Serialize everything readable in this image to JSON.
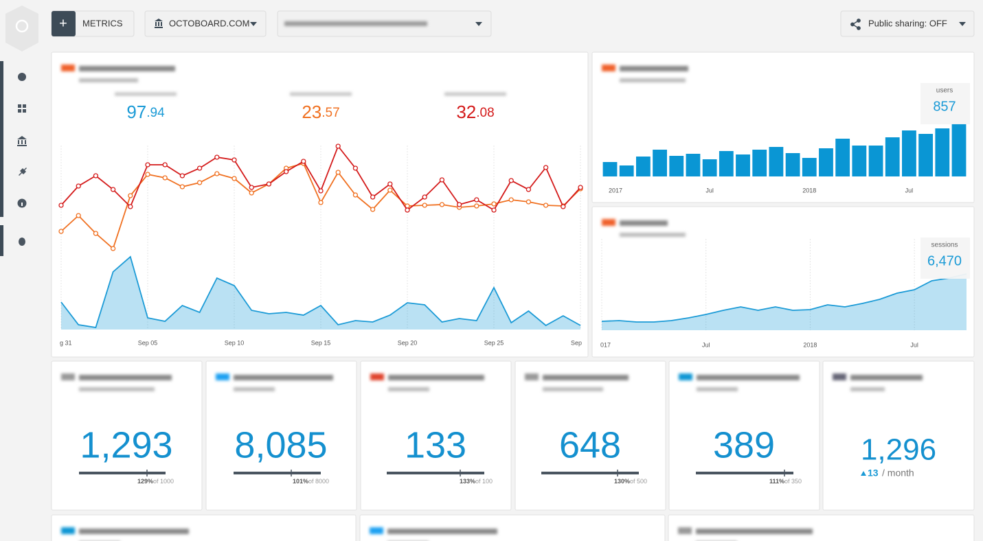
{
  "toolbar": {
    "add_button": "METRICS",
    "source": "OCTOBOARD.COM",
    "sharing": "Public sharing: OFF"
  },
  "overview": {
    "kpis": [
      {
        "main": "97",
        "fraction": ".94",
        "color": "#1a9ad6"
      },
      {
        "main": "23",
        "fraction": ".57",
        "color": "#f07020"
      },
      {
        "main": "32",
        "fraction": ".08",
        "color": "#d41a1a"
      }
    ],
    "chart_data": {
      "type": "line",
      "categories": [
        "g 31",
        null,
        null,
        null,
        null,
        "Sep 05",
        null,
        null,
        null,
        null,
        "Sep 10",
        null,
        null,
        null,
        null,
        "Sep 15",
        null,
        null,
        null,
        null,
        "Sep 20",
        null,
        null,
        null,
        null,
        "Sep 25",
        null,
        null,
        null,
        null,
        "Sep"
      ],
      "ylim": [
        0,
        280
      ],
      "grid": true,
      "series": [
        {
          "color": "#1a9ad6",
          "area": true,
          "markers": false,
          "values": [
            40,
            7,
            3,
            84,
            106,
            17,
            12,
            35,
            25,
            75,
            64,
            28,
            23,
            25,
            21,
            35,
            7,
            13,
            11,
            21,
            39,
            36,
            11,
            16,
            13,
            61,
            10,
            27,
            6,
            20,
            6
          ]
        },
        {
          "color": "#f07020",
          "area": false,
          "markers": true,
          "values": [
            143,
            166,
            140,
            118,
            195,
            226,
            221,
            208,
            214,
            227,
            220,
            199,
            212,
            235,
            242,
            185,
            229,
            196,
            175,
            203,
            180,
            181,
            182,
            178,
            180,
            183,
            189,
            186,
            181,
            180,
            205
          ]
        },
        {
          "color": "#d41a1a",
          "area": false,
          "markers": true,
          "values": [
            181,
            209,
            224,
            204,
            179,
            240,
            240,
            224,
            235,
            251,
            247,
            207,
            212,
            230,
            245,
            202,
            267,
            235,
            193,
            212,
            174,
            193,
            218,
            182,
            189,
            174,
            217,
            204,
            236,
            179,
            207
          ]
        }
      ]
    }
  },
  "users": {
    "label": "users",
    "value_text": "857",
    "chart_data": {
      "type": "bar",
      "categories": [
        "2017",
        null,
        null,
        null,
        null,
        null,
        "Jul",
        null,
        null,
        null,
        null,
        null,
        "2018",
        null,
        null,
        null,
        null,
        null,
        "Jul",
        null,
        null,
        null
      ],
      "values": [
        21,
        16,
        29,
        39,
        30,
        33,
        25,
        37,
        32,
        39,
        43,
        34,
        27,
        41,
        55,
        45,
        45,
        57,
        67,
        62,
        70,
        77
      ],
      "color": "#0a96d4",
      "ylim": [
        0,
        85
      ]
    }
  },
  "sessions": {
    "label": "sessions",
    "value_text": "6,470",
    "chart_data": {
      "type": "area",
      "categories": [
        "017",
        null,
        null,
        null,
        null,
        null,
        "Jul",
        null,
        null,
        null,
        null,
        null,
        "2018",
        null,
        null,
        null,
        null,
        null,
        "Jul",
        null,
        null,
        null
      ],
      "values": [
        13,
        14,
        12,
        12,
        14,
        18,
        23,
        29,
        34,
        29,
        34,
        29,
        30,
        37,
        34,
        39,
        45,
        54,
        59,
        72,
        76,
        82
      ],
      "color": "#1a9ad6",
      "ylim": [
        0,
        90
      ],
      "grid": true
    }
  },
  "tiles": [
    {
      "value": "1,293",
      "percent": "129%",
      "target": "of 1000"
    },
    {
      "value": "8,085",
      "percent": "101%",
      "target": "of 8000"
    },
    {
      "value": "133",
      "percent": "133%",
      "target": "of 100"
    },
    {
      "value": "648",
      "percent": "130%",
      "target": "of 500"
    },
    {
      "value": "389",
      "percent": "111%",
      "target": "of 350"
    },
    {
      "value": "1,296",
      "change": "13",
      "period": "/ month"
    }
  ]
}
